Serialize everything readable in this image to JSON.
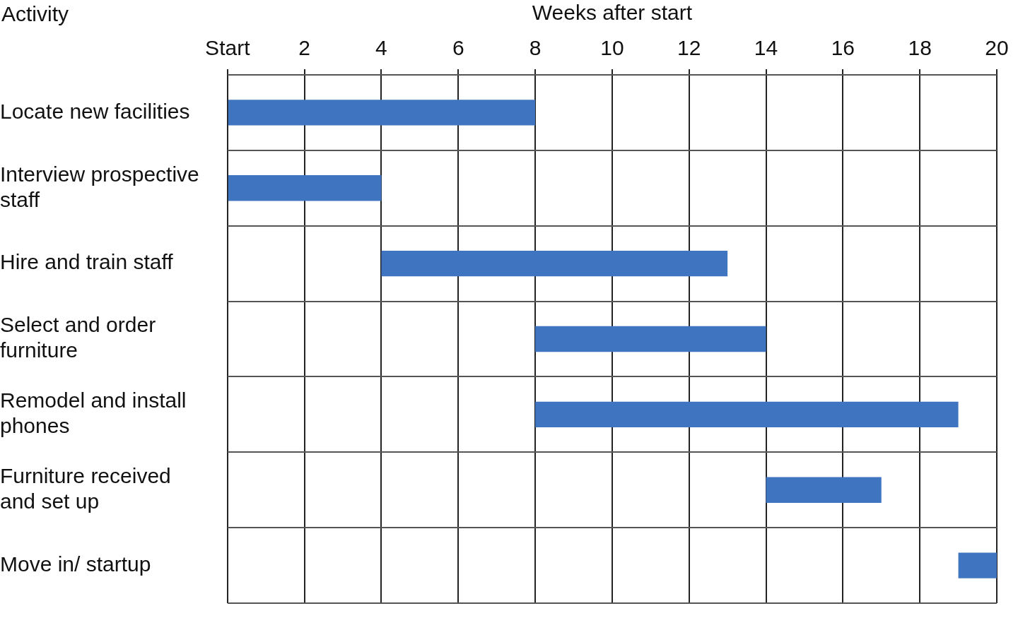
{
  "chart_data": {
    "type": "bar",
    "orientation": "horizontal",
    "xlabel": "Weeks after start",
    "ylabel": "Activity",
    "categories": [
      "Locate new facilities",
      "Interview prospective staff",
      "Hire and train staff",
      "Select and order furniture",
      "Remodel and install phones",
      "Furniture received and set up",
      "Move in/ startup"
    ],
    "base": [
      0,
      0,
      4,
      8,
      8,
      14,
      19
    ],
    "values": [
      8,
      4,
      9,
      6,
      11,
      3,
      1
    ],
    "color": "#3f74c0",
    "xlim": [
      0,
      20
    ],
    "xticks": [
      {
        "value": 0,
        "label": "Start"
      },
      2,
      4,
      6,
      8,
      10,
      12,
      14,
      16,
      18,
      20
    ],
    "grid": true,
    "legend": false
  }
}
